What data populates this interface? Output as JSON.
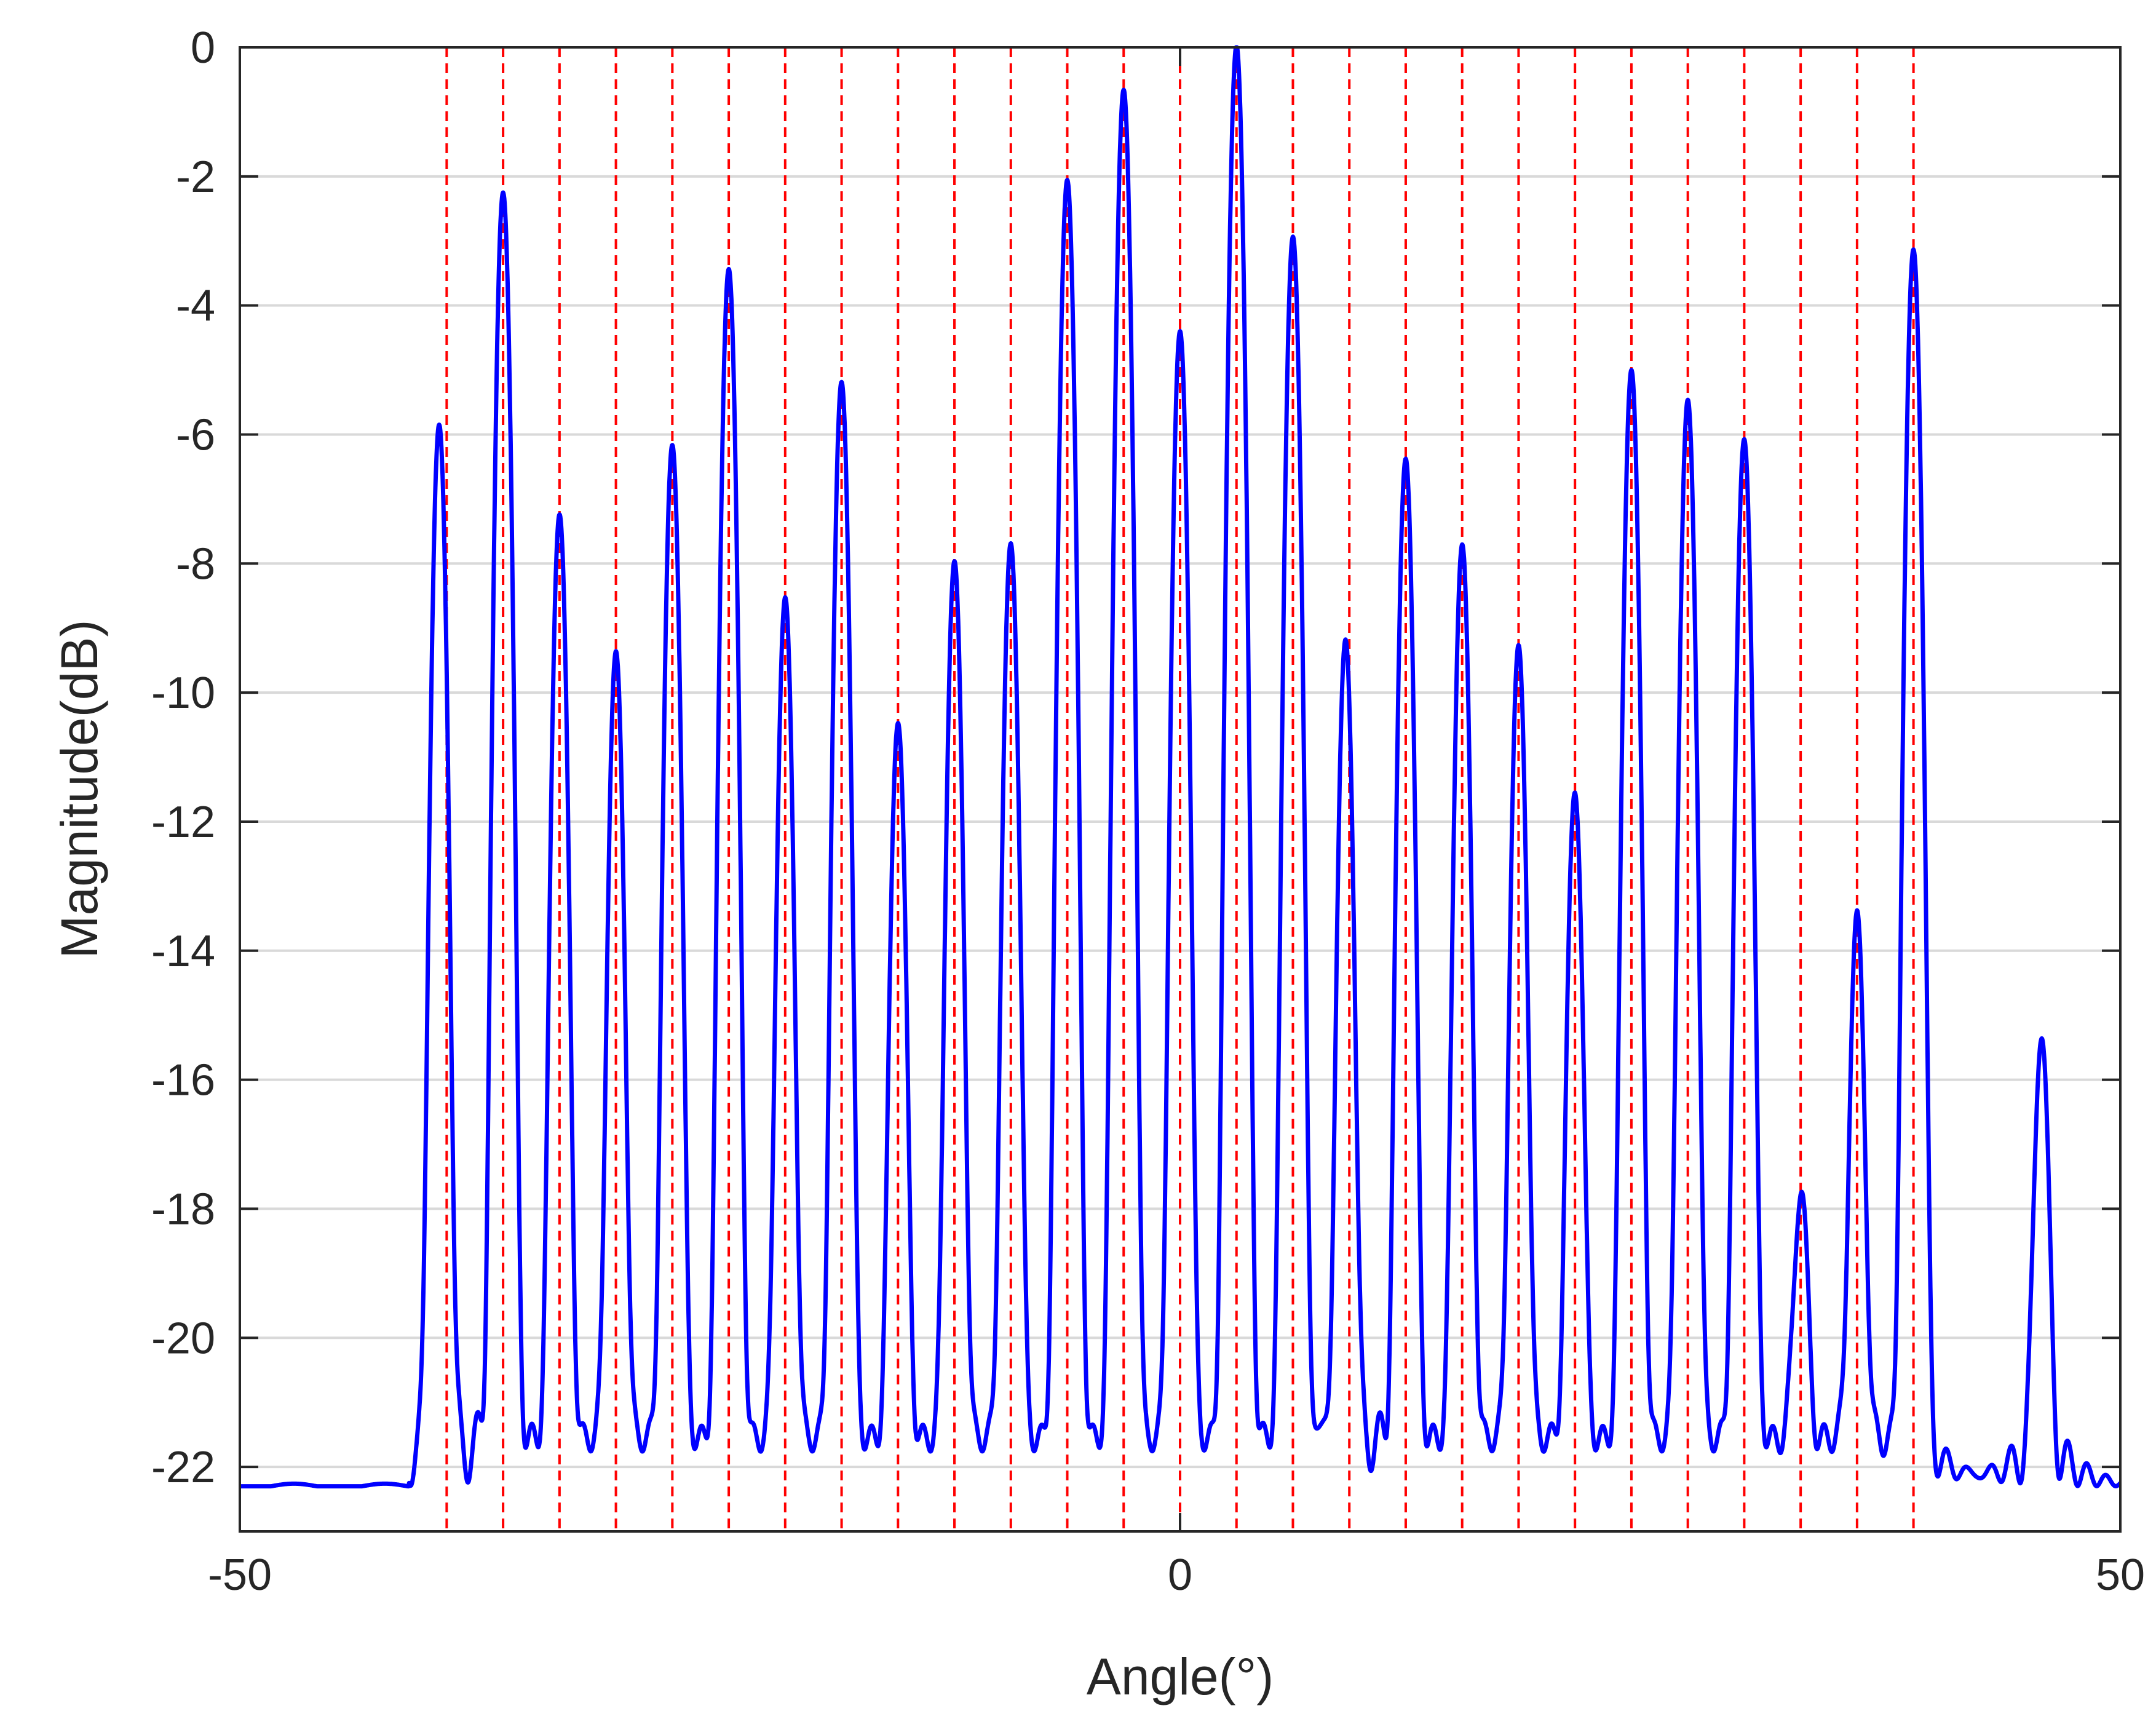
{
  "chart_data": {
    "type": "line",
    "title": "",
    "xlabel": "Angle(°)",
    "ylabel": "Magnitude(dB)",
    "xlim": [
      -50,
      50
    ],
    "ylim": [
      -23,
      0
    ],
    "xticks": [
      -50,
      0,
      50
    ],
    "xtick_labels": [
      "-50",
      "0",
      "50"
    ],
    "yticks": [
      0,
      -2,
      -4,
      -6,
      -8,
      -10,
      -12,
      -14,
      -16,
      -18,
      -20,
      -22
    ],
    "ytick_labels": [
      "0",
      "-2",
      "-4",
      "-6",
      "-8",
      "-10",
      "-12",
      "-14",
      "-16",
      "-18",
      "-20",
      "-22"
    ],
    "grid": "horizontal",
    "legend": "none",
    "noise_floor_db": -22.3,
    "series": [
      {
        "style": "solid",
        "color": "#0000ff",
        "peaks": [
          {
            "angle": -39.4,
            "db": -6.0
          },
          {
            "angle": -36.0,
            "db": -2.3
          },
          {
            "angle": -33.0,
            "db": -7.4
          },
          {
            "angle": -30.0,
            "db": -9.7
          },
          {
            "angle": -27.0,
            "db": -6.3
          },
          {
            "angle": -24.0,
            "db": -3.5
          },
          {
            "angle": -21.0,
            "db": -8.8
          },
          {
            "angle": -18.0,
            "db": -5.3
          },
          {
            "angle": -15.0,
            "db": -10.8
          },
          {
            "angle": -12.0,
            "db": -8.2
          },
          {
            "angle": -9.0,
            "db": -7.9
          },
          {
            "angle": -6.0,
            "db": -2.1
          },
          {
            "angle": -3.0,
            "db": -0.7
          },
          {
            "angle": 0.0,
            "db": -4.5
          },
          {
            "angle": 3.0,
            "db": 0.0
          },
          {
            "angle": 6.0,
            "db": -3.0
          },
          {
            "angle": 8.8,
            "db": -9.5
          },
          {
            "angle": 12.0,
            "db": -6.5
          },
          {
            "angle": 15.0,
            "db": -7.9
          },
          {
            "angle": 18.0,
            "db": -9.6
          },
          {
            "angle": 21.0,
            "db": -12.0
          },
          {
            "angle": 24.0,
            "db": -5.1
          },
          {
            "angle": 27.0,
            "db": -5.6
          },
          {
            "angle": 30.0,
            "db": -6.2
          },
          {
            "angle": 33.0,
            "db": -20.1
          },
          {
            "angle": 36.0,
            "db": -14.3
          },
          {
            "angle": 39.0,
            "db": -3.2
          },
          {
            "angle": 45.8,
            "db": -16.4
          }
        ]
      },
      {
        "style": "dashed-vertical",
        "color": "#ff0000",
        "angles": [
          -39,
          -36,
          -33,
          -30,
          -27,
          -24,
          -21,
          -18,
          -15,
          -12,
          -9,
          -6,
          -3,
          0,
          3,
          6,
          9,
          12,
          15,
          18,
          21,
          24,
          27,
          30,
          33,
          36,
          39
        ]
      }
    ]
  }
}
